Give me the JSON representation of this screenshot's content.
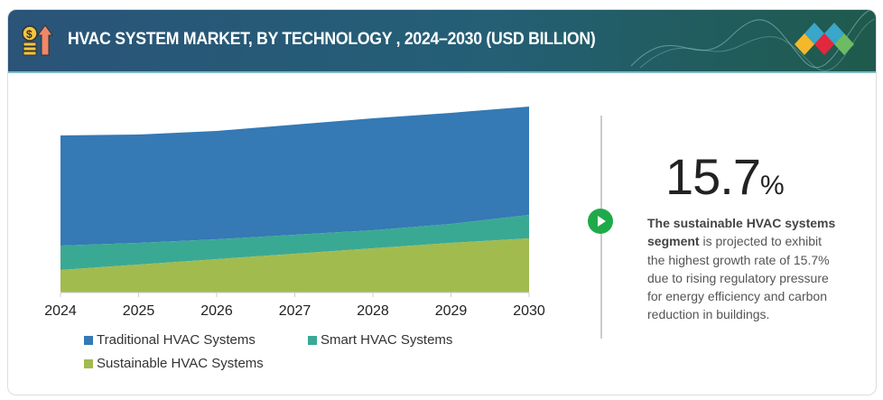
{
  "header": {
    "title": "HVAC SYSTEM MARKET, BY TECHNOLOGY , 2024–2030 (USD BILLION)",
    "icon": "money-growth-icon",
    "logo": "diamond-logo"
  },
  "chart_data": {
    "type": "area",
    "stacked": true,
    "title": "HVAC SYSTEM MARKET, BY TECHNOLOGY , 2024–2030 (USD BILLION)",
    "xlabel": "",
    "ylabel": "",
    "ylim": [
      0,
      210
    ],
    "grid": false,
    "legend_position": "bottom",
    "categories": [
      "2024",
      "2025",
      "2026",
      "2027",
      "2028",
      "2029",
      "2030"
    ],
    "series": [
      {
        "name": "Sustainable HVAC Systems",
        "color": "#a2bb4f",
        "values": [
          25,
          31,
          37,
          43,
          49,
          55,
          60
        ]
      },
      {
        "name": "Smart HVAC Systems",
        "color": "#3aa994",
        "values": [
          27,
          24,
          22,
          21,
          20,
          21,
          26
        ]
      },
      {
        "name": "Traditional HVAC Systems",
        "color": "#3579b5",
        "values": [
          122,
          120,
          120,
          122,
          124,
          123,
          120
        ]
      }
    ]
  },
  "legend": [
    "Traditional HVAC Systems",
    "Smart HVAC Systems",
    "Sustainable HVAC Systems"
  ],
  "highlight": {
    "value": "15.7",
    "unit": "%",
    "desc_bold": "The sustainable HVAC systems segment",
    "desc_rest": " is projected to exhibit the highest growth rate of 15.7% due to rising regulatory pressure for energy efficiency and carbon reduction in buildings.",
    "icon": "play-icon"
  }
}
